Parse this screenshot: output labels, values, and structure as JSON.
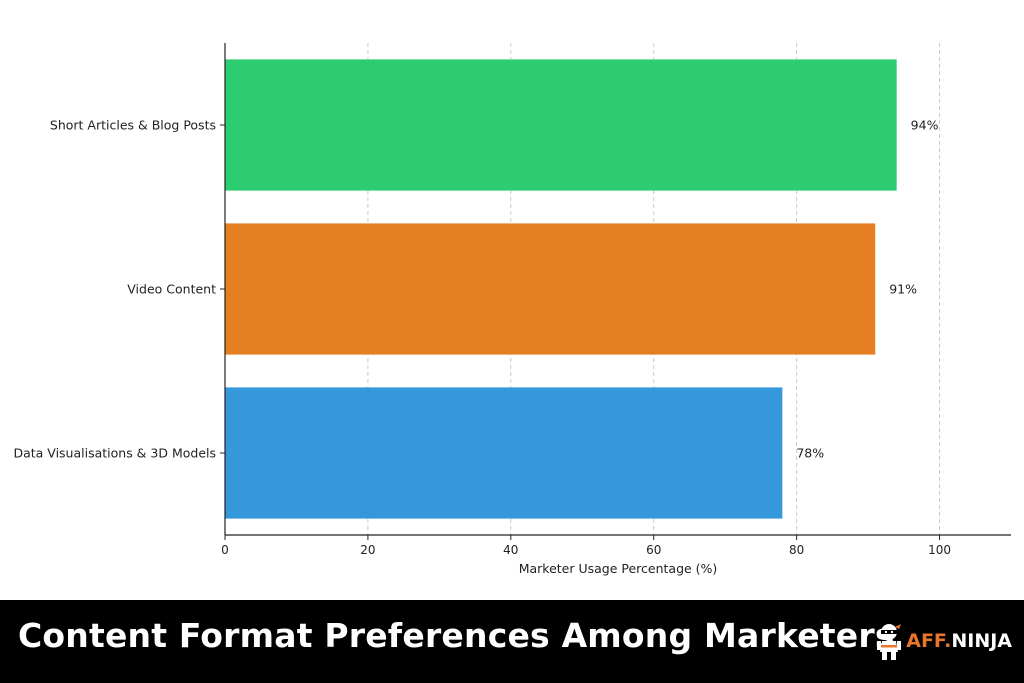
{
  "chart_data": {
    "type": "bar",
    "orientation": "horizontal",
    "categories": [
      "Short Articles & Blog Posts",
      "Video Content",
      "Data Visualisations & 3D Models"
    ],
    "values": [
      94,
      91,
      78
    ],
    "value_labels": [
      "94%",
      "91%",
      "78%"
    ],
    "colors": [
      "#2ecc71",
      "#e67e22",
      "#3498db"
    ],
    "xlabel": "Marketer Usage Percentage (%)",
    "ylabel": "",
    "xlim": [
      0,
      110
    ],
    "xticks": [
      0,
      20,
      40,
      60,
      80,
      100
    ],
    "xtick_labels": [
      "0",
      "20",
      "40",
      "60",
      "80",
      "100"
    ],
    "grid": "vertical dashed"
  },
  "footer": {
    "title": "Content Format Preferences Among Marketers",
    "logo_accent": "AFF.",
    "logo_text": "NINJA",
    "logo_icon": "ninja-icon"
  }
}
